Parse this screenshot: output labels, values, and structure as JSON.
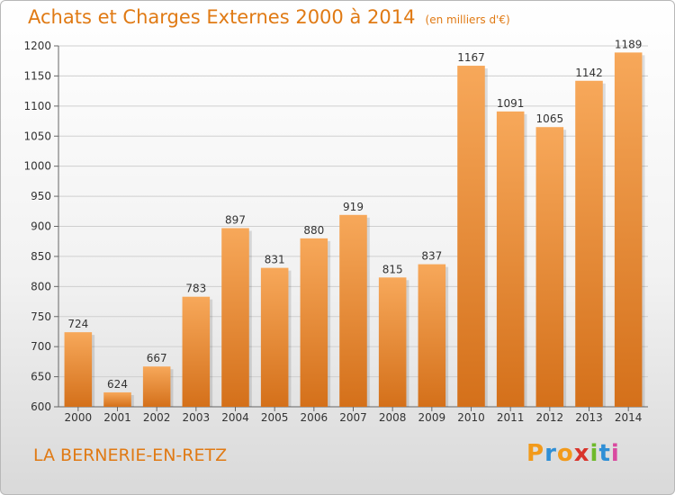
{
  "header": {
    "title": "Achats et Charges Externes 2000 à 2014",
    "subtitle": "(en milliers d'€)"
  },
  "footer": {
    "place": "LA BERNERIE-EN-RETZ",
    "brand_letters": [
      "P",
      "r",
      "o",
      "x",
      "i",
      "t",
      "i"
    ],
    "brand_colors": [
      "#f29a1b",
      "#2f8fd6",
      "#f29a1b",
      "#d9342b",
      "#6fba2c",
      "#2f8fd6",
      "#d94aa0"
    ]
  },
  "chart_data": {
    "type": "bar",
    "title": "Achats et Charges Externes 2000 à 2014",
    "subtitle": "(en milliers d'€)",
    "categories": [
      "2000",
      "2001",
      "2002",
      "2003",
      "2004",
      "2005",
      "2006",
      "2007",
      "2008",
      "2009",
      "2010",
      "2011",
      "2012",
      "2013",
      "2014"
    ],
    "values": [
      724,
      624,
      667,
      783,
      897,
      831,
      880,
      919,
      815,
      837,
      1167,
      1091,
      1065,
      1142,
      1189
    ],
    "ylim": [
      600,
      1200
    ],
    "yticks": [
      600,
      650,
      700,
      750,
      800,
      850,
      900,
      950,
      1000,
      1050,
      1100,
      1150,
      1200
    ],
    "grid": true,
    "bar_color": "#f0913a"
  }
}
